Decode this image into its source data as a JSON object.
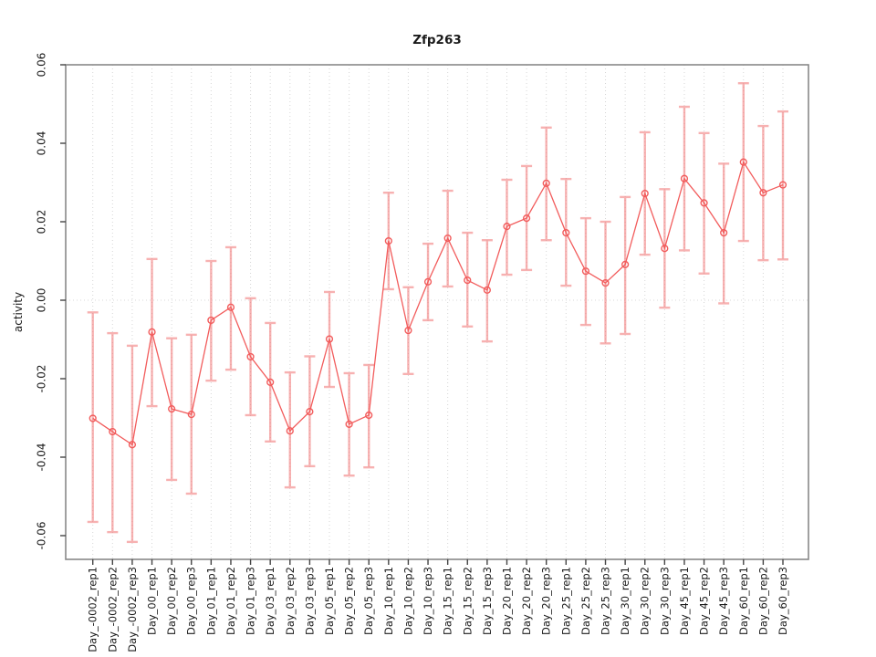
{
  "window": {
    "title": "Zfp263"
  },
  "chart_data": {
    "type": "scatter",
    "title": "Zfp263",
    "xlabel": "",
    "ylabel": "activity",
    "ylim": [
      -0.066,
      0.062
    ],
    "yticks": [
      -0.06,
      -0.04,
      -0.02,
      0.0,
      0.02,
      0.04,
      0.06
    ],
    "ytick_labels": [
      "-0.06",
      "-0.04",
      "-0.02",
      "0.00",
      "0.02",
      "0.04",
      "0.06"
    ],
    "legend_position": "none",
    "grid": "vertical dotted gridline at each category; dotted horizontal line at y=0",
    "categories": [
      "Day_-0002_rep1",
      "Day_-0002_rep2",
      "Day_-0002_rep3",
      "Day_00_rep1",
      "Day_00_rep2",
      "Day_00_rep3",
      "Day_01_rep1",
      "Day_01_rep2",
      "Day_01_rep3",
      "Day_03_rep1",
      "Day_03_rep2",
      "Day_03_rep3",
      "Day_05_rep1",
      "Day_05_rep2",
      "Day_05_rep3",
      "Day_10_rep1",
      "Day_10_rep2",
      "Day_10_rep3",
      "Day_15_rep1",
      "Day_15_rep2",
      "Day_15_rep3",
      "Day_20_rep1",
      "Day_20_rep2",
      "Day_20_rep3",
      "Day_25_rep1",
      "Day_25_rep2",
      "Day_25_rep3",
      "Day_30_rep1",
      "Day_30_rep2",
      "Day_30_rep3",
      "Day_45_rep1",
      "Day_45_rep2",
      "Day_45_rep3",
      "Day_60_rep1",
      "Day_60_rep2",
      "Day_60_rep3"
    ],
    "series": [
      {
        "name": "activity",
        "values": [
          -0.0301,
          -0.0335,
          -0.0368,
          -0.0081,
          -0.0277,
          -0.0291,
          -0.0051,
          -0.0018,
          -0.0144,
          -0.0209,
          -0.0333,
          -0.0284,
          -0.0099,
          -0.0316,
          -0.0293,
          0.0151,
          -0.0077,
          0.0047,
          0.0158,
          0.0051,
          0.0026,
          0.0188,
          0.0209,
          0.0298,
          0.0172,
          0.0074,
          0.0044,
          0.0091,
          0.0272,
          0.0132,
          0.031,
          0.0248,
          0.0172,
          0.0352,
          0.0274,
          0.0294
        ],
        "upper": [
          -0.0031,
          -0.0084,
          -0.0116,
          0.0105,
          -0.0097,
          -0.0088,
          0.01,
          0.0135,
          0.0005,
          -0.0058,
          -0.0184,
          -0.0143,
          0.0021,
          -0.0186,
          -0.0165,
          0.0274,
          0.0033,
          0.0144,
          0.0279,
          0.0172,
          0.0153,
          0.0307,
          0.0342,
          0.044,
          0.0309,
          0.0209,
          0.02,
          0.0263,
          0.0428,
          0.0283,
          0.0493,
          0.0426,
          0.0348,
          0.0553,
          0.0444,
          0.0481
        ],
        "lower": [
          -0.0565,
          -0.0591,
          -0.0616,
          -0.027,
          -0.0458,
          -0.0493,
          -0.0205,
          -0.0177,
          -0.0293,
          -0.036,
          -0.0477,
          -0.0423,
          -0.0221,
          -0.0447,
          -0.0426,
          0.0028,
          -0.0188,
          -0.0051,
          0.0035,
          -0.0067,
          -0.0105,
          0.0065,
          0.0077,
          0.0153,
          0.0037,
          -0.0063,
          -0.011,
          -0.0086,
          0.0116,
          -0.0019,
          0.0127,
          0.0068,
          -0.0008,
          0.0151,
          0.0102,
          0.0104
        ]
      }
    ],
    "colors": {
      "point_line": "#f25c5c",
      "error_bar": "#f27272",
      "error_bar_alpha": 0.55,
      "gridline": "#d6d6d6",
      "zero_line": "#d9d9d9",
      "frame": "#888888",
      "tick": "#444444",
      "text": "#1a1a1a",
      "background": "#ffffff"
    }
  }
}
